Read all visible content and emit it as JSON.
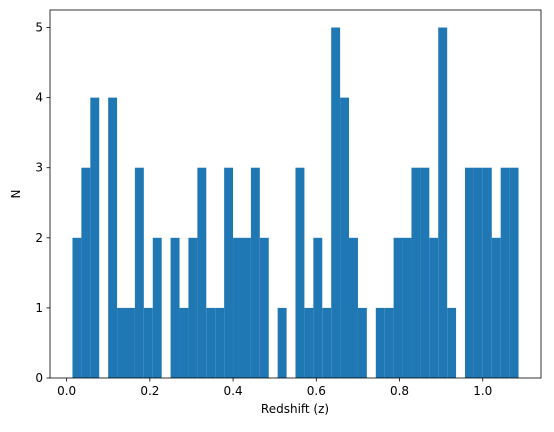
{
  "chart_data": {
    "type": "histogram",
    "xlabel": "Redshift (z)",
    "ylabel": "N",
    "color": "#1f77b4",
    "bins": [
      0.014,
      0.0354,
      0.0569,
      0.0783,
      0.0998,
      0.1212,
      0.1426,
      0.1641,
      0.1855,
      0.207,
      0.2284,
      0.2498,
      0.2713,
      0.2927,
      0.3142,
      0.3356,
      0.357,
      0.3785,
      0.3999,
      0.4214,
      0.4428,
      0.4642,
      0.4857,
      0.5071,
      0.5286,
      0.55,
      0.5714,
      0.5929,
      0.6143,
      0.6358,
      0.6572,
      0.6786,
      0.7001,
      0.7215,
      0.743,
      0.7644,
      0.7858,
      0.8073,
      0.8287,
      0.8502,
      0.8716,
      0.893,
      0.9145,
      0.9359,
      0.9574,
      0.9788,
      1.0002,
      1.0217,
      1.0431,
      1.0646,
      1.086
    ],
    "counts": [
      2,
      3,
      4,
      0,
      4,
      1,
      1,
      3,
      1,
      2,
      0,
      2,
      1,
      2,
      3,
      1,
      1,
      3,
      2,
      2,
      3,
      2,
      0,
      1,
      0,
      3,
      1,
      2,
      1,
      5,
      4,
      2,
      1,
      0,
      1,
      1,
      2,
      2,
      3,
      3,
      2,
      5,
      1,
      0,
      3,
      3,
      3,
      2,
      3,
      3
    ],
    "xlim": [
      -0.04,
      1.14
    ],
    "xticks": [
      {
        "value": 0,
        "label": "0.0"
      },
      0.2,
      0.4,
      0.6,
      0.8,
      {
        "value": 1,
        "label": "1.0"
      }
    ],
    "ylim": [
      0,
      5.25
    ],
    "yticks": [
      0,
      1,
      2,
      3,
      4,
      5
    ]
  }
}
